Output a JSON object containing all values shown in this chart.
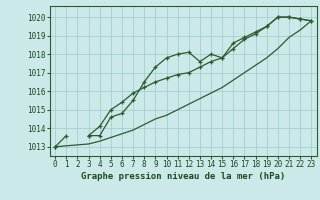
{
  "title": "Graphe pression niveau de la mer (hPa)",
  "hours": [
    0,
    1,
    2,
    3,
    4,
    5,
    6,
    7,
    8,
    9,
    10,
    11,
    12,
    13,
    14,
    15,
    16,
    17,
    18,
    19,
    20,
    21,
    22,
    23
  ],
  "ylim": [
    1012.5,
    1020.6
  ],
  "yticks": [
    1013,
    1014,
    1015,
    1016,
    1017,
    1018,
    1019,
    1020
  ],
  "bg_color": "#cce9e9",
  "grid_color": "#99cccc",
  "line_color": "#2d5a2d",
  "line1_y": [
    1013.0,
    1013.6,
    null,
    1013.6,
    1013.6,
    1014.6,
    1014.8,
    1015.5,
    1016.5,
    1017.3,
    1017.8,
    1018.0,
    1018.1,
    1017.6,
    1018.0,
    1017.8,
    1018.6,
    1018.9,
    1019.2,
    1019.5,
    1020.0,
    1020.0,
    1019.9,
    1019.8
  ],
  "line2_y": [
    1013.0,
    null,
    null,
    1013.6,
    1014.1,
    1015.0,
    1015.4,
    1015.9,
    1016.2,
    1016.5,
    1016.7,
    1016.9,
    1017.0,
    1017.3,
    1017.6,
    1017.8,
    1018.3,
    1018.8,
    1019.1,
    1019.5,
    1020.0,
    1020.0,
    1019.9,
    1019.8
  ],
  "line3_y": [
    1013.0,
    1013.05,
    1013.1,
    1013.15,
    1013.3,
    1013.5,
    1013.7,
    1013.9,
    1014.2,
    1014.5,
    1014.7,
    1015.0,
    1015.3,
    1015.6,
    1015.9,
    1016.2,
    1016.6,
    1017.0,
    1017.4,
    1017.8,
    1018.3,
    1018.9,
    1019.3,
    1019.8
  ],
  "title_fontsize": 6.5,
  "tick_fontsize": 5.5
}
